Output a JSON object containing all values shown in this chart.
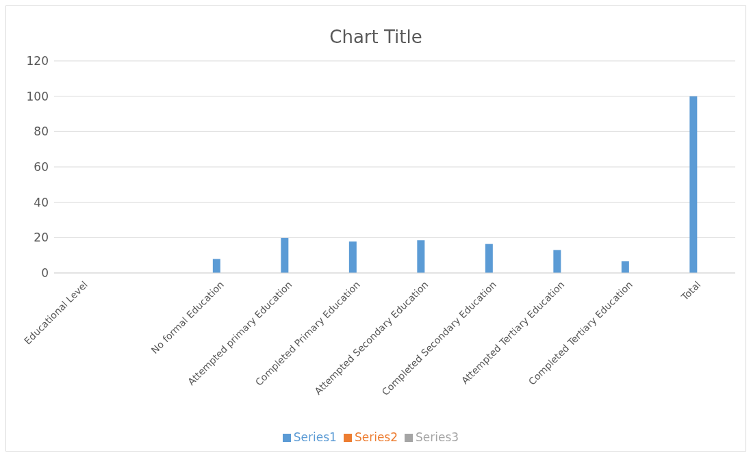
{
  "chart_data": {
    "type": "bar",
    "title": "Chart Title",
    "categories": [
      "Educational Level",
      null,
      "No formal Education",
      "Attempted primary Education",
      "Completed Primary Education",
      "Attempted Secondary Education",
      "Completed Secondary Education",
      "Attempted Tertiary Education",
      "Completed Tertiary Education",
      "Total"
    ],
    "series": [
      {
        "name": "Series1",
        "color": "#5b9bd5",
        "values": [
          null,
          null,
          7.9,
          19.8,
          17.8,
          18.5,
          16.4,
          13.0,
          6.6,
          100
        ]
      },
      {
        "name": "Series2",
        "color": "#ed7d31",
        "values": [
          null,
          null,
          null,
          null,
          null,
          null,
          null,
          null,
          null,
          null
        ]
      },
      {
        "name": "Series3",
        "color": "#a5a5a5",
        "values": [
          null,
          null,
          null,
          null,
          null,
          null,
          null,
          null,
          null,
          null
        ]
      }
    ],
    "ylim": [
      0,
      120
    ],
    "yticks": [
      0,
      20,
      40,
      60,
      80,
      100,
      120
    ],
    "grid": "y",
    "legend": "bottom"
  }
}
